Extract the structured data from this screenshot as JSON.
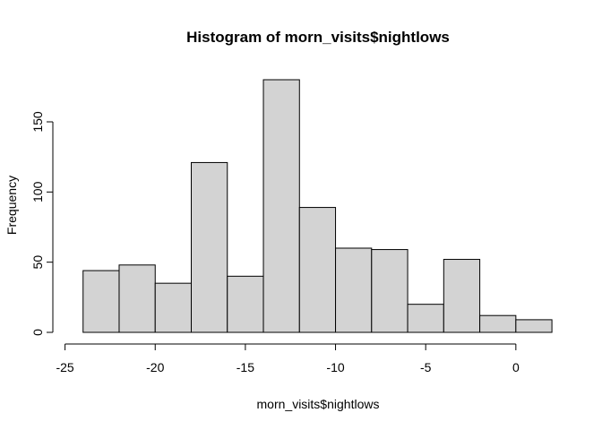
{
  "chart_data": {
    "type": "bar",
    "title": "Histogram of morn_visits$nightlows",
    "xlabel": "morn_visits$nightlows",
    "ylabel": "Frequency",
    "bins": [
      {
        "start": -24,
        "end": -22,
        "count": 44
      },
      {
        "start": -22,
        "end": -20,
        "count": 48
      },
      {
        "start": -20,
        "end": -18,
        "count": 35
      },
      {
        "start": -18,
        "end": -16,
        "count": 121
      },
      {
        "start": -16,
        "end": -14,
        "count": 40
      },
      {
        "start": -14,
        "end": -12,
        "count": 180
      },
      {
        "start": -12,
        "end": -10,
        "count": 89
      },
      {
        "start": -10,
        "end": -8,
        "count": 60
      },
      {
        "start": -8,
        "end": -6,
        "count": 59
      },
      {
        "start": -6,
        "end": -4,
        "count": 20
      },
      {
        "start": -4,
        "end": -2,
        "count": 52
      },
      {
        "start": -2,
        "end": 0,
        "count": 12
      },
      {
        "start": 0,
        "end": 2,
        "count": 9
      }
    ],
    "x_ticks": [
      -25,
      -20,
      -15,
      -10,
      -5,
      0
    ],
    "x_tick_labels": [
      "-25",
      "-20",
      "-15",
      "-10",
      "-5",
      "0"
    ],
    "y_ticks": [
      0,
      50,
      100,
      150
    ],
    "y_tick_labels": [
      "0",
      "50",
      "100",
      "150"
    ],
    "xlim": [
      -25,
      2
    ],
    "ylim": [
      0,
      180
    ],
    "bar_fill": "#d3d3d3",
    "bar_stroke": "#000000",
    "grid": false
  }
}
